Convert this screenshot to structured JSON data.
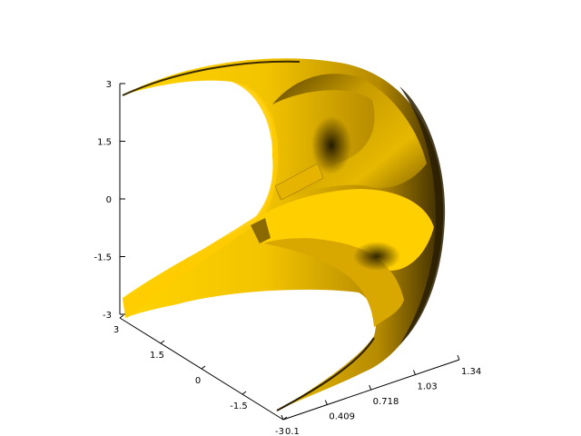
{
  "chart_data": {
    "type": "surface",
    "title": "",
    "xlabel": "",
    "ylabel": "",
    "zlabel": "",
    "grid": false,
    "surface_color": "#ffcc00",
    "x_axis": {
      "ticks": [
        "0.1",
        "0.409",
        "0.718",
        "1.03",
        "1.34"
      ],
      "range": [
        0.1,
        1.34
      ]
    },
    "y_axis": {
      "ticks": [
        "-3",
        "-1.5",
        "0",
        "1.5",
        "3"
      ],
      "range": [
        -3,
        3
      ]
    },
    "z_axis": {
      "ticks": [
        "-3",
        "-1.5",
        "0",
        "1.5",
        "3"
      ],
      "range": [
        -3,
        3
      ]
    }
  }
}
